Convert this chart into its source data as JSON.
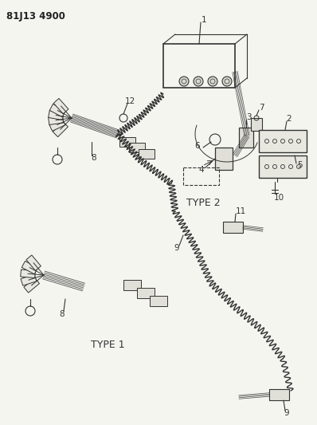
{
  "part_number": "81J13 4900",
  "bg": "#f5f5f0",
  "lc": "#333333",
  "fig_width": 3.98,
  "fig_height": 5.33,
  "dpi": 100
}
